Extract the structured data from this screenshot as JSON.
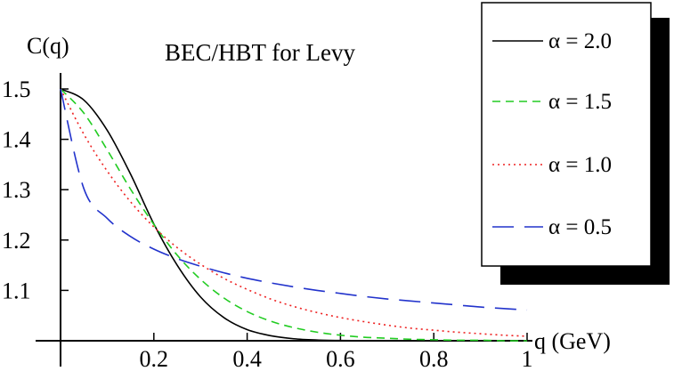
{
  "chart_data": {
    "type": "line",
    "title": "BEC/HBT for Levy",
    "ylabel": "C(q)",
    "xlabel": "q (GeV)",
    "xlim": [
      0,
      1
    ],
    "ylim": [
      1.0,
      1.5
    ],
    "x_ticks": [
      "0.2",
      "0.4",
      "0.6",
      "0.8",
      "1"
    ],
    "y_ticks": [
      "1.1",
      "1.2",
      "1.3",
      "1.4",
      "1.5"
    ],
    "grid": false,
    "legend_position": "top-right",
    "x": [
      0.0,
      0.05,
      0.1,
      0.15,
      0.2,
      0.25,
      0.3,
      0.35,
      0.4,
      0.45,
      0.5,
      0.55,
      0.6,
      0.65,
      0.7,
      0.75,
      0.8,
      0.85,
      0.9,
      0.95,
      1.0
    ],
    "series": [
      {
        "name": "α = 2.0",
        "color": "#000000",
        "dash": "solid",
        "values": [
          1.5,
          1.478,
          1.418,
          1.331,
          1.232,
          1.15,
          1.087,
          1.046,
          1.022,
          1.01,
          1.004,
          1.0015,
          1.0005,
          1.0002,
          1.0,
          1.0,
          1.0,
          1.0,
          1.0,
          1.0,
          1.0
        ]
      },
      {
        "name": "α = 1.5",
        "color": "#22cc22",
        "dash": "dashed",
        "values": [
          1.5,
          1.452,
          1.379,
          1.301,
          1.231,
          1.17,
          1.122,
          1.085,
          1.058,
          1.039,
          1.026,
          1.017,
          1.011,
          1.007,
          1.005,
          1.003,
          1.002,
          1.001,
          1.001,
          1.0,
          1.0
        ]
      },
      {
        "name": "α = 1.0",
        "color": "#ee2222",
        "dash": "dotted",
        "values": [
          1.5,
          1.41,
          1.337,
          1.276,
          1.226,
          1.185,
          1.152,
          1.124,
          1.102,
          1.083,
          1.068,
          1.056,
          1.046,
          1.038,
          1.031,
          1.025,
          1.021,
          1.017,
          1.014,
          1.011,
          1.009
        ]
      },
      {
        "name": "α = 0.5",
        "color": "#2233cc",
        "dash": "long-dashed",
        "values": [
          1.5,
          1.302,
          1.243,
          1.207,
          1.182,
          1.163,
          1.148,
          1.135,
          1.124,
          1.115,
          1.107,
          1.1,
          1.094,
          1.088,
          1.083,
          1.079,
          1.075,
          1.071,
          1.067,
          1.064,
          1.061
        ]
      }
    ]
  }
}
